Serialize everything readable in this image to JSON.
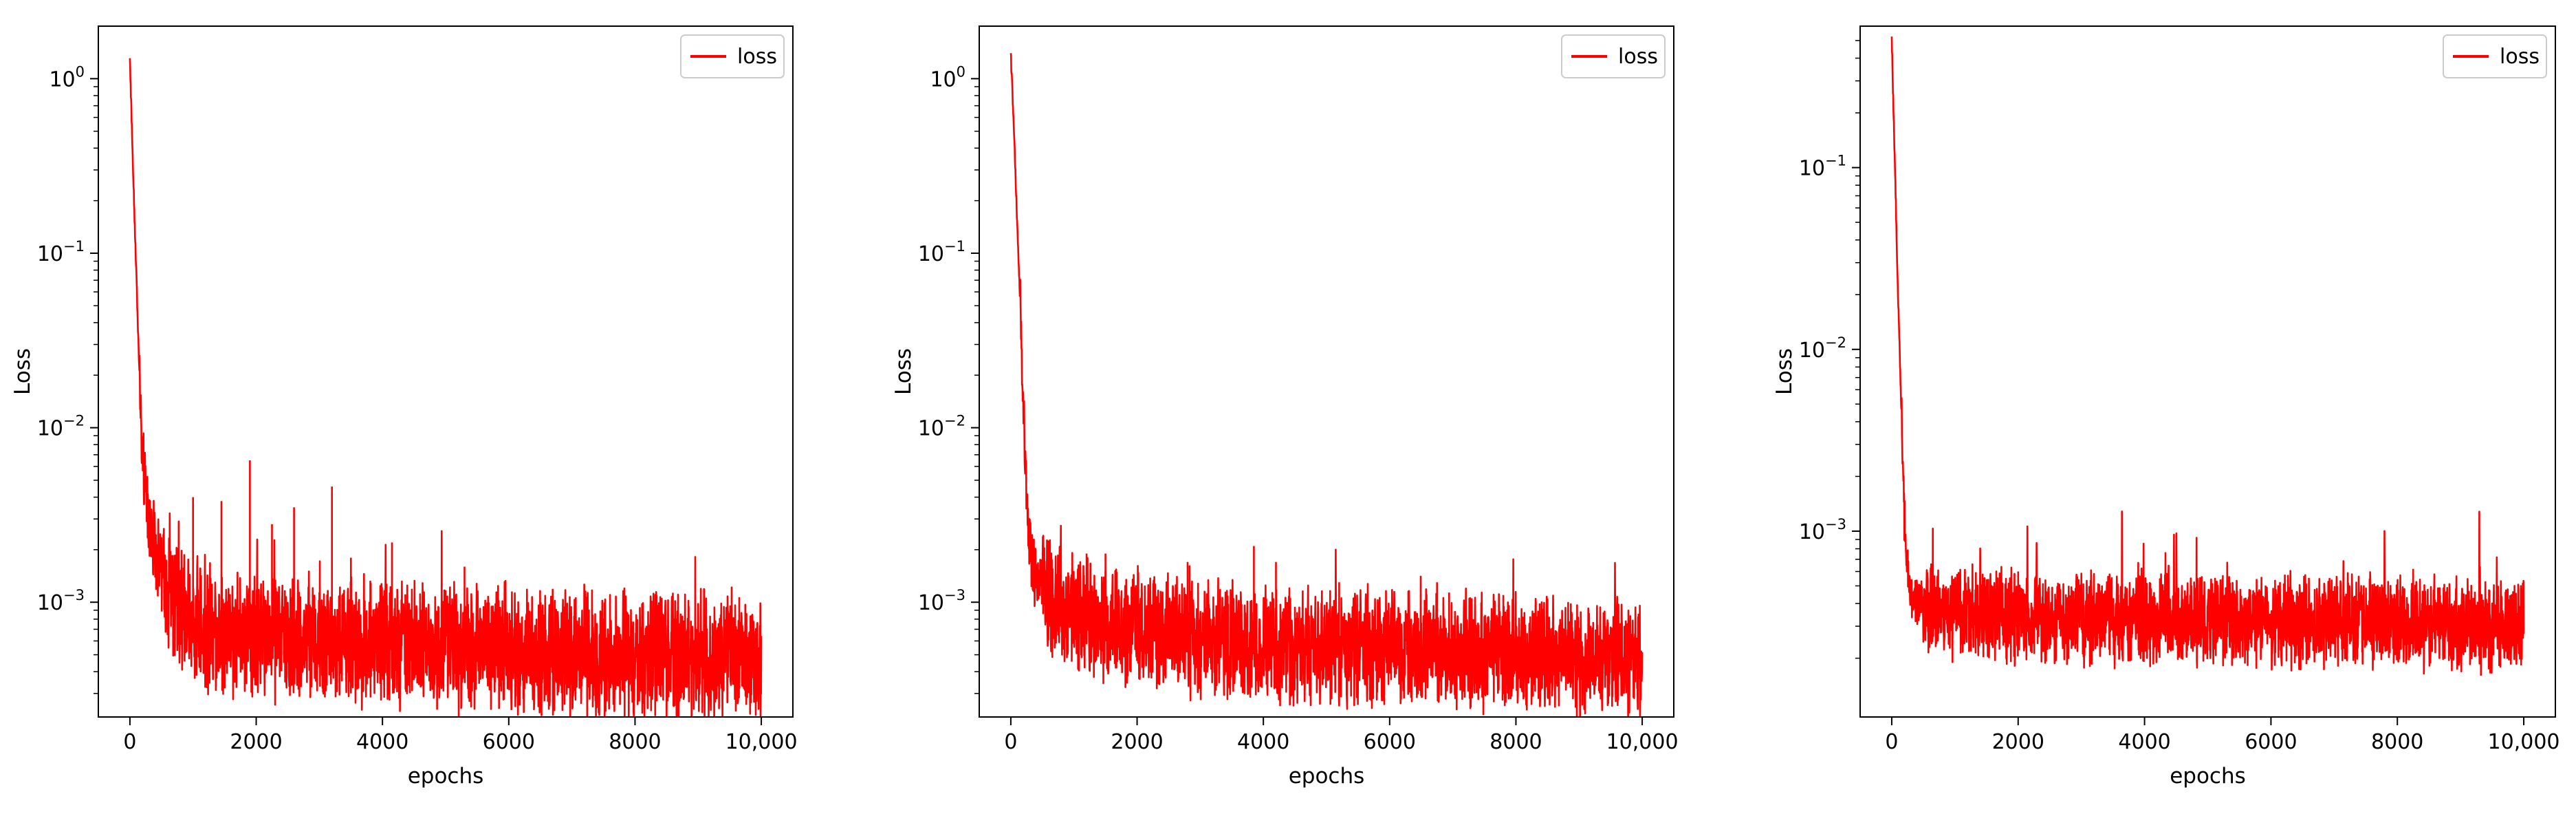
{
  "colors": {
    "loss": "#ff0000",
    "axes": "#000000",
    "background": "#ffffff"
  },
  "chart_data": [
    {
      "type": "line",
      "title": "",
      "xlabel": "epochs",
      "ylabel": "Loss",
      "yscale": "log",
      "xlim": [
        -500,
        10500
      ],
      "ylim": [
        0.00022,
        2.0
      ],
      "xticks": [
        0,
        2000,
        4000,
        6000,
        8000,
        10000
      ],
      "xtick_labels": [
        "0",
        "2000",
        "4000",
        "6000",
        "8000",
        "10,000"
      ],
      "yticks": [
        1,
        0.1,
        0.01,
        0.001
      ],
      "ytick_labels": [
        {
          "base": "10",
          "exp": "0"
        },
        {
          "base": "10",
          "exp": "−1"
        },
        {
          "base": "10",
          "exp": "−2"
        },
        {
          "base": "10",
          "exp": "−3"
        }
      ],
      "legend": {
        "position": "top-right",
        "entries": [
          "loss"
        ]
      },
      "grid": false,
      "series": [
        {
          "name": "loss",
          "color": "#ff0000",
          "x": [
            0,
            50,
            100,
            150,
            200,
            300,
            400,
            500,
            600,
            800,
            1000,
            1500,
            2000,
            3000,
            4000,
            5000,
            6000,
            7000,
            8000,
            9000,
            10000
          ],
          "y": [
            1.3,
            0.3,
            0.08,
            0.02,
            0.006,
            0.003,
            0.0021,
            0.0016,
            0.0012,
            0.0009,
            0.00078,
            0.0007,
            0.00065,
            0.0006,
            0.00057,
            0.00055,
            0.00053,
            0.00051,
            0.0005,
            0.00049,
            0.00048
          ],
          "spikes": [
            [
              1900,
              0.0065
            ],
            [
              3200,
              0.0046
            ],
            [
              1000,
              0.004
            ],
            [
              1450,
              0.0038
            ],
            [
              2600,
              0.0035
            ],
            [
              4150,
              0.0022
            ],
            [
              2250,
              0.0028
            ],
            [
              3500,
              0.0018
            ],
            [
              5300,
              0.0016
            ],
            [
              8850,
              0.00095
            ]
          ],
          "noise": 0.55
        }
      ]
    },
    {
      "type": "line",
      "title": "",
      "xlabel": "epochs",
      "ylabel": "Loss",
      "yscale": "log",
      "xlim": [
        -500,
        10500
      ],
      "ylim": [
        0.00022,
        2.0
      ],
      "xticks": [
        0,
        2000,
        4000,
        6000,
        8000,
        10000
      ],
      "xtick_labels": [
        "0",
        "2000",
        "4000",
        "6000",
        "8000",
        "10,000"
      ],
      "yticks": [
        1,
        0.1,
        0.01,
        0.001
      ],
      "ytick_labels": [
        {
          "base": "10",
          "exp": "0"
        },
        {
          "base": "10",
          "exp": "−1"
        },
        {
          "base": "10",
          "exp": "−2"
        },
        {
          "base": "10",
          "exp": "−3"
        }
      ],
      "legend": {
        "position": "top-right",
        "entries": [
          "loss"
        ]
      },
      "grid": false,
      "series": [
        {
          "name": "loss",
          "color": "#ff0000",
          "x": [
            0,
            50,
            100,
            150,
            200,
            250,
            300,
            350,
            400,
            600,
            800,
            1000,
            1500,
            2000,
            3000,
            4000,
            5000,
            6000,
            7000,
            8000,
            9000,
            10000
          ],
          "y": [
            1.4,
            0.5,
            0.15,
            0.05,
            0.012,
            0.004,
            0.0019,
            0.0016,
            0.0014,
            0.0011,
            0.00095,
            0.00085,
            0.00075,
            0.0007,
            0.00063,
            0.00059,
            0.00056,
            0.00054,
            0.00052,
            0.0005,
            0.00049,
            0.00048
          ],
          "spikes": [
            [
              3850,
              0.0021
            ],
            [
              1200,
              0.0019
            ],
            [
              1500,
              0.0019
            ],
            [
              2800,
              0.0017
            ],
            [
              4200,
              0.0017
            ],
            [
              6750,
              0.0013
            ],
            [
              5200,
              0.0013
            ],
            [
              7800,
              0.0011
            ]
          ],
          "noise": 0.5
        }
      ]
    },
    {
      "type": "line",
      "title": "",
      "xlabel": "epochs",
      "ylabel": "Loss",
      "yscale": "log",
      "xlim": [
        -500,
        10500
      ],
      "ylim": [
        9.5e-05,
        0.6
      ],
      "xticks": [
        0,
        2000,
        4000,
        6000,
        8000,
        10000
      ],
      "xtick_labels": [
        "0",
        "2000",
        "4000",
        "6000",
        "8000",
        "10,000"
      ],
      "yticks": [
        0.1,
        0.01,
        0.001
      ],
      "ytick_labels": [
        {
          "base": "10",
          "exp": "−1"
        },
        {
          "base": "10",
          "exp": "−2"
        },
        {
          "base": "10",
          "exp": "−3"
        }
      ],
      "legend": {
        "position": "top-right",
        "entries": [
          "loss"
        ]
      },
      "grid": false,
      "series": [
        {
          "name": "loss",
          "color": "#ff0000",
          "x": [
            0,
            50,
            100,
            150,
            200,
            250,
            300,
            400,
            600,
            1000,
            2000,
            4000,
            6000,
            8000,
            10000
          ],
          "y": [
            0.5,
            0.1,
            0.02,
            0.005,
            0.0012,
            0.0006,
            0.00045,
            0.0004,
            0.00037,
            0.00035,
            0.00034,
            0.00033,
            0.00032,
            0.00031,
            0.0003
          ],
          "spikes": [
            [
              8250,
              0.00062
            ],
            [
              2000,
              0.0006
            ],
            [
              3900,
              0.00055
            ]
          ],
          "noise": 0.38
        }
      ]
    }
  ]
}
